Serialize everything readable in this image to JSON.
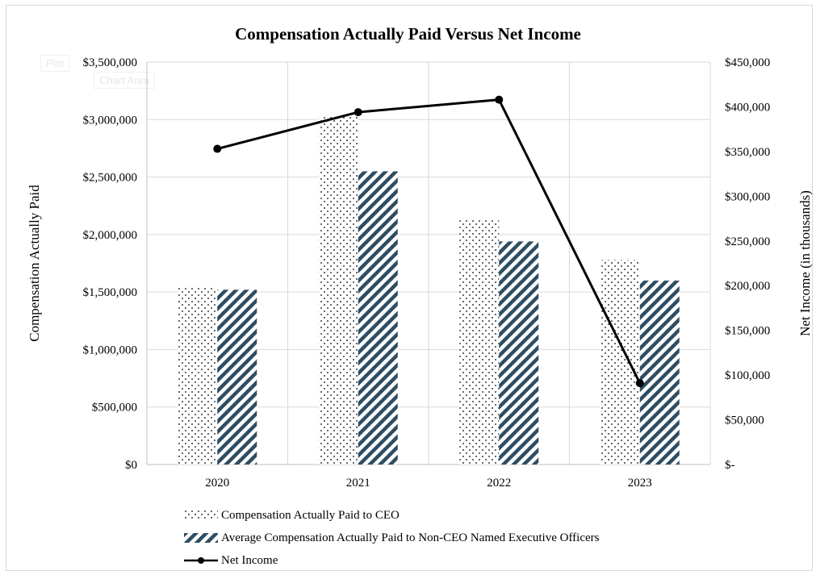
{
  "chart_data": {
    "type": "bar",
    "title": "Compensation Actually Paid Versus Net Income",
    "categories": [
      "2020",
      "2021",
      "2022",
      "2023"
    ],
    "ylabel": "Compensation Actually Paid",
    "y2label": "Net Income (in thousands)",
    "ylim": [
      0,
      3500000
    ],
    "y2lim": [
      0,
      450000
    ],
    "yticks": [
      "$0",
      "$500,000",
      "$1,000,000",
      "$1,500,000",
      "$2,000,000",
      "$2,500,000",
      "$3,000,000",
      "$3,500,000"
    ],
    "y2ticks": [
      "$-",
      "$50,000",
      "$100,000",
      "$150,000",
      "$200,000",
      "$250,000",
      "$300,000",
      "$350,000",
      "$400,000",
      "$450,000"
    ],
    "grid": true,
    "legend_position": "bottom",
    "series": [
      {
        "name": "Compensation Actually Paid to CEO",
        "kind": "bar",
        "axis": "left",
        "pattern": "dots",
        "values": [
          1550000,
          3030000,
          2140000,
          1780000
        ]
      },
      {
        "name": "Average Compensation Actually Paid to Non-CEO Named Executive Officers",
        "kind": "bar",
        "axis": "left",
        "pattern": "diagonal-stripes",
        "color": "#2e4d63",
        "values": [
          1520000,
          2550000,
          1940000,
          1600000
        ]
      },
      {
        "name": "Net Income",
        "kind": "line",
        "axis": "right",
        "color": "#000000",
        "values": [
          353000,
          394000,
          408000,
          91000
        ]
      }
    ]
  },
  "ghost": {
    "a": "Plot",
    "b": "Chart Area"
  }
}
